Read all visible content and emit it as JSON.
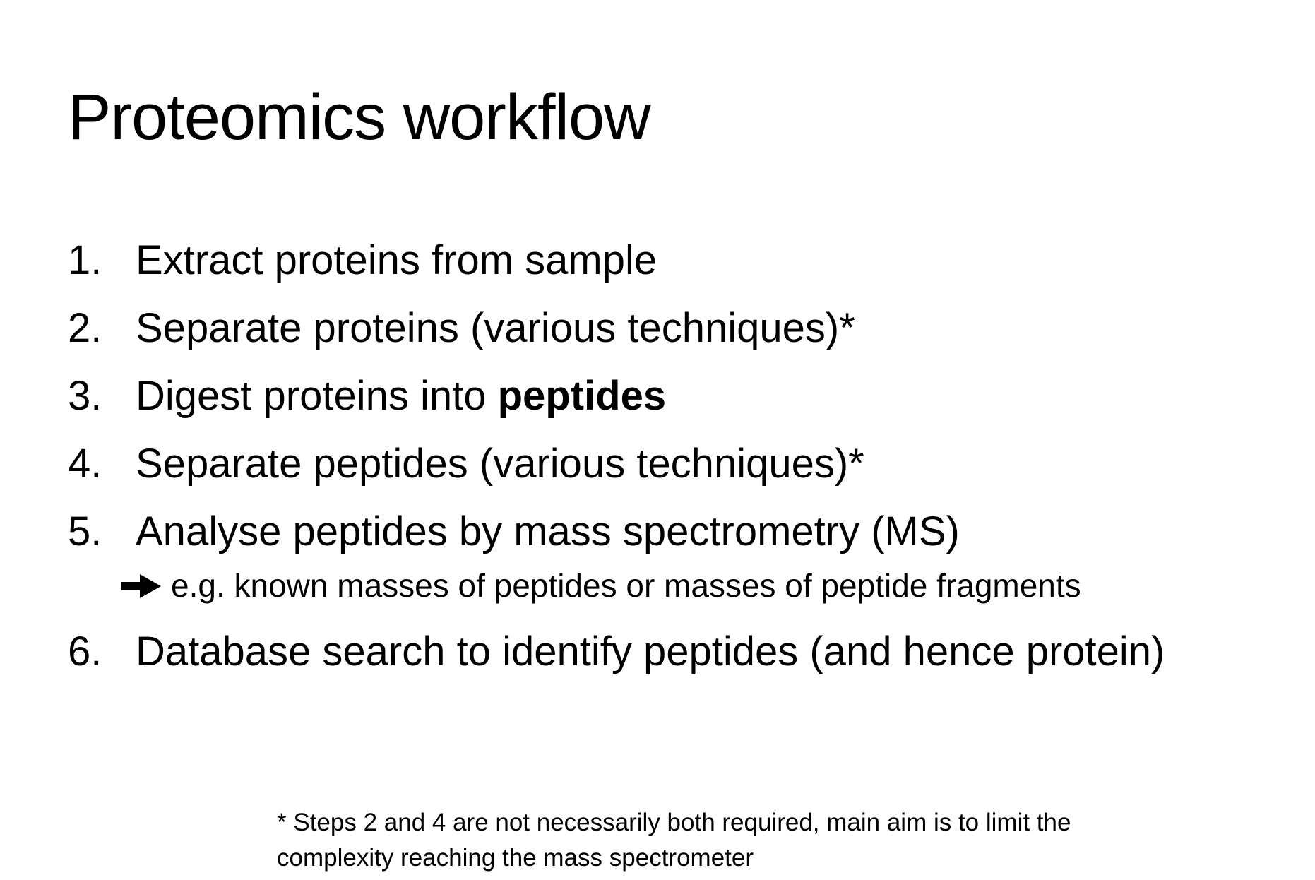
{
  "title": "Proteomics workflow",
  "steps": [
    {
      "number": "1.",
      "text": "Extract proteins from sample"
    },
    {
      "number": "2.",
      "text": "Separate proteins (various techniques)*"
    },
    {
      "number": "3.",
      "text": "Digest proteins into ",
      "emphasis": "peptides"
    },
    {
      "number": "4.",
      "text": "Separate peptides (various techniques)*"
    },
    {
      "number": "5.",
      "text": "Analyse peptides by mass spectrometry (MS)"
    },
    {
      "number": "6.",
      "text": "Database search to identify peptides (and hence protein)"
    }
  ],
  "step5_note": {
    "icon": "arrow-right-icon",
    "text": "e.g. known masses of peptides or masses of peptide fragments"
  },
  "footnote": {
    "line1": "* Steps 2 and 4 are not necessarily both required, main aim is to limit the",
    "line2": "complexity reaching the mass spectrometer"
  }
}
